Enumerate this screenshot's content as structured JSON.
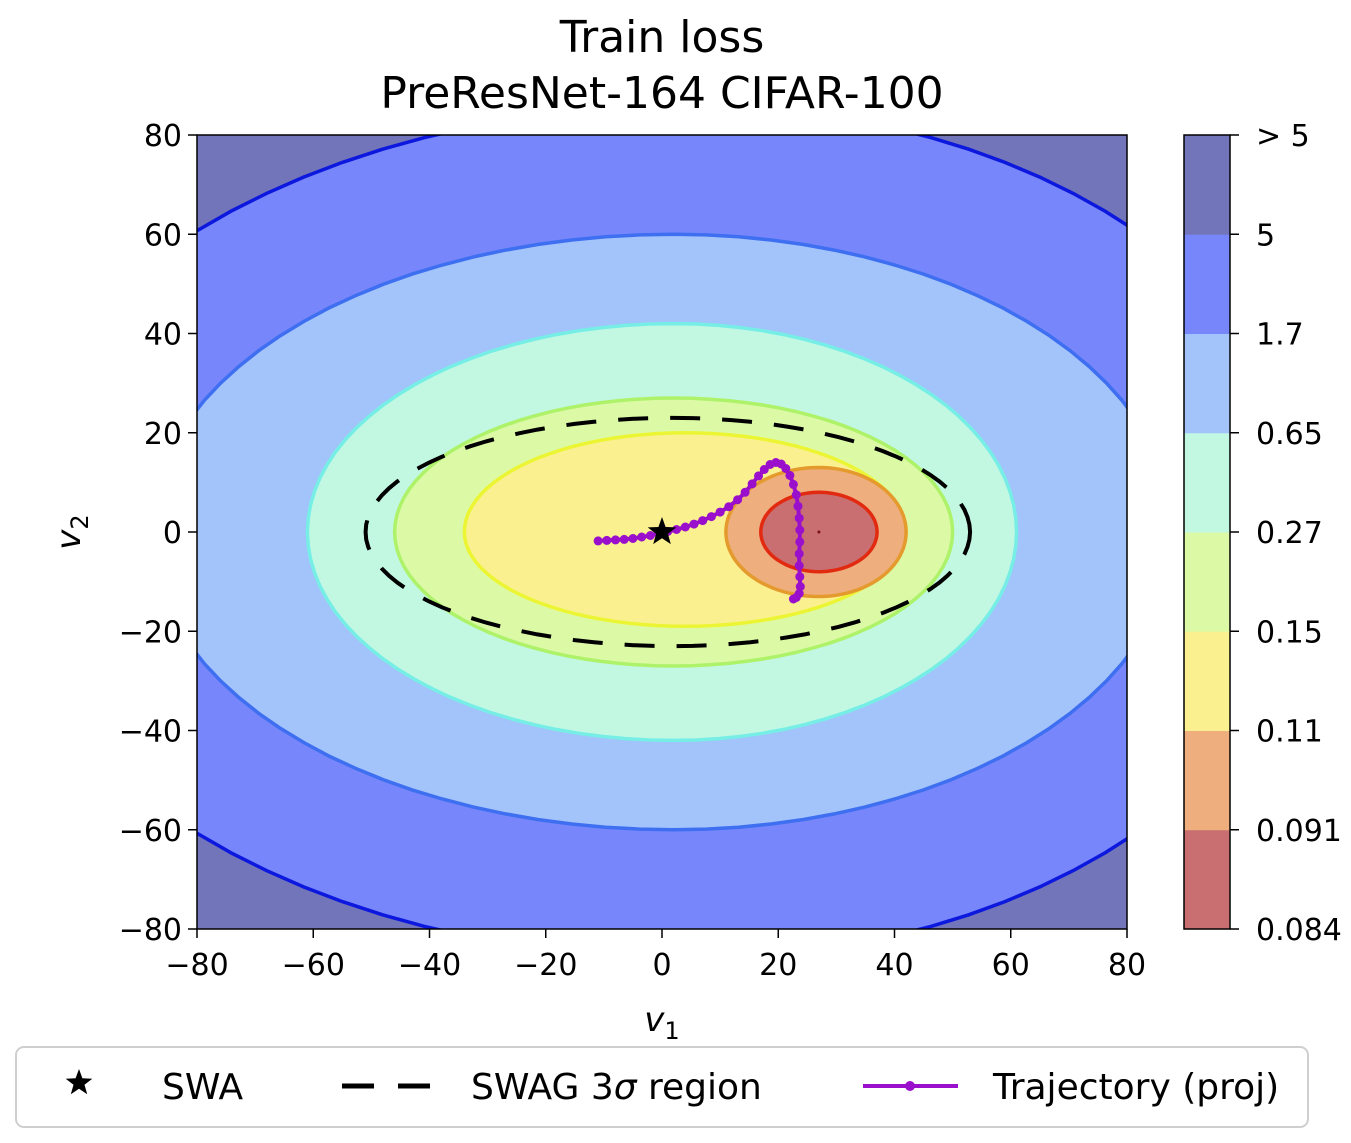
{
  "chart_data": {
    "type": "contour",
    "title": "Train loss",
    "subtitle": "PreResNet-164 CIFAR-100",
    "xlabel": "v",
    "xlabel_sub": "1",
    "ylabel": "v",
    "ylabel_sub": "2",
    "xlim": [
      -80,
      80
    ],
    "ylim": [
      -80,
      80
    ],
    "xticks": [
      -80,
      -60,
      -40,
      -20,
      0,
      20,
      40,
      60,
      80
    ],
    "yticks": [
      -80,
      -60,
      -40,
      -20,
      0,
      20,
      40,
      60,
      80
    ],
    "grid": false,
    "colorbar": {
      "ticks": [
        "0.084",
        "0.091",
        "0.11",
        "0.15",
        "0.27",
        "0.65",
        "1.7",
        "5",
        "> 5"
      ],
      "level_colors": [
        "#c96f72",
        "#eeae7d",
        "#faf08f",
        "#dcfaa5",
        "#c2f8e2",
        "#a3c3fb",
        "#7886fb",
        "#7275b9"
      ]
    },
    "contour_levels": [
      {
        "level": "0.091",
        "color": "#e22a10",
        "fill": "#c96f72",
        "cx": 27,
        "cy": 0,
        "rx_left": 10,
        "rx_right": 10,
        "ry_top": 8,
        "ry_bottom": 8
      },
      {
        "level": "0.11",
        "color": "#e59a2e",
        "fill": "#eeae7d",
        "cx": 27,
        "cy": 0,
        "rx_left": 16,
        "rx_right": 15,
        "ry_top": 13,
        "ry_bottom": 13
      },
      {
        "level": "0.15",
        "color": "#ecf533",
        "fill": "#faf08f",
        "cx": 4,
        "cy": 0,
        "rx_left": 38,
        "rx_right": 38,
        "ry_top": 20,
        "ry_bottom": 19
      },
      {
        "level": "0.27",
        "color": "#aef26a",
        "fill": "#dcfaa5",
        "cx": 2,
        "cy": 0,
        "rx_left": 48,
        "rx_right": 48,
        "ry_top": 27,
        "ry_bottom": 27
      },
      {
        "level": "0.65",
        "color": "#76eee6",
        "fill": "#c2f8e2",
        "cx": 2,
        "cy": 0,
        "rx_left": 63,
        "rx_right": 59,
        "ry_top": 42,
        "ry_bottom": 42
      },
      {
        "level": "1.7",
        "color": "#3e6ff1",
        "fill": "#a3c3fb",
        "cx": 2,
        "cy": 0,
        "rx_left": 90,
        "rx_right": 86,
        "ry_top": 60,
        "ry_bottom": 60
      },
      {
        "level": "5",
        "color": "#0c18de",
        "fill": "#7886fb",
        "cx": 5,
        "cy": 0,
        "rx_left": 120,
        "rx_right": 108,
        "ry_top": 86,
        "ry_bottom": 86
      }
    ],
    "loss_minimum": [
      27,
      0
    ],
    "swag_region": {
      "cx": 2,
      "cy": 0,
      "rx_left": 53,
      "rx_right": 51,
      "ry_top": 23,
      "ry_bottom": 23
    },
    "swa_point": [
      0,
      0
    ],
    "trajectory": [
      [
        -11,
        -1.8
      ],
      [
        -9.5,
        -1.7
      ],
      [
        -8,
        -1.6
      ],
      [
        -6.5,
        -1.5
      ],
      [
        -5,
        -1.3
      ],
      [
        -3.5,
        -1.0
      ],
      [
        -2,
        -0.7
      ],
      [
        -0.5,
        -0.3
      ],
      [
        1,
        0.1
      ],
      [
        2.5,
        0.5
      ],
      [
        4,
        1.0
      ],
      [
        5.5,
        1.6
      ],
      [
        7,
        2.3
      ],
      [
        8.5,
        3.1
      ],
      [
        10,
        4.0
      ],
      [
        11.5,
        5.1
      ],
      [
        13,
        6.5
      ],
      [
        14.3,
        8.0
      ],
      [
        15.5,
        9.7
      ],
      [
        16.6,
        11.3
      ],
      [
        17.6,
        12.6
      ],
      [
        18.6,
        13.6
      ],
      [
        19.6,
        14.0
      ],
      [
        20.5,
        13.7
      ],
      [
        21.3,
        12.8
      ],
      [
        22,
        11.4
      ],
      [
        22.6,
        9.6
      ],
      [
        23.1,
        7.5
      ],
      [
        23.4,
        5.2
      ],
      [
        23.6,
        2.8
      ],
      [
        23.7,
        0.4
      ],
      [
        23.7,
        -2.0
      ],
      [
        23.6,
        -4.4
      ],
      [
        23.6,
        -6.8
      ],
      [
        23.7,
        -9.0
      ],
      [
        23.8,
        -11.0
      ],
      [
        23.6,
        -12.4
      ],
      [
        23.1,
        -13.2
      ],
      [
        22.6,
        -13.5
      ]
    ],
    "legend": {
      "position": "bottom",
      "entries": [
        {
          "marker": "star",
          "label": "SWA"
        },
        {
          "marker": "dash",
          "label": "SWAG 3",
          "label_symbol": "σ",
          "label_after": " region"
        },
        {
          "marker": "line-dot",
          "label": "Trajectory (proj)"
        }
      ]
    }
  }
}
